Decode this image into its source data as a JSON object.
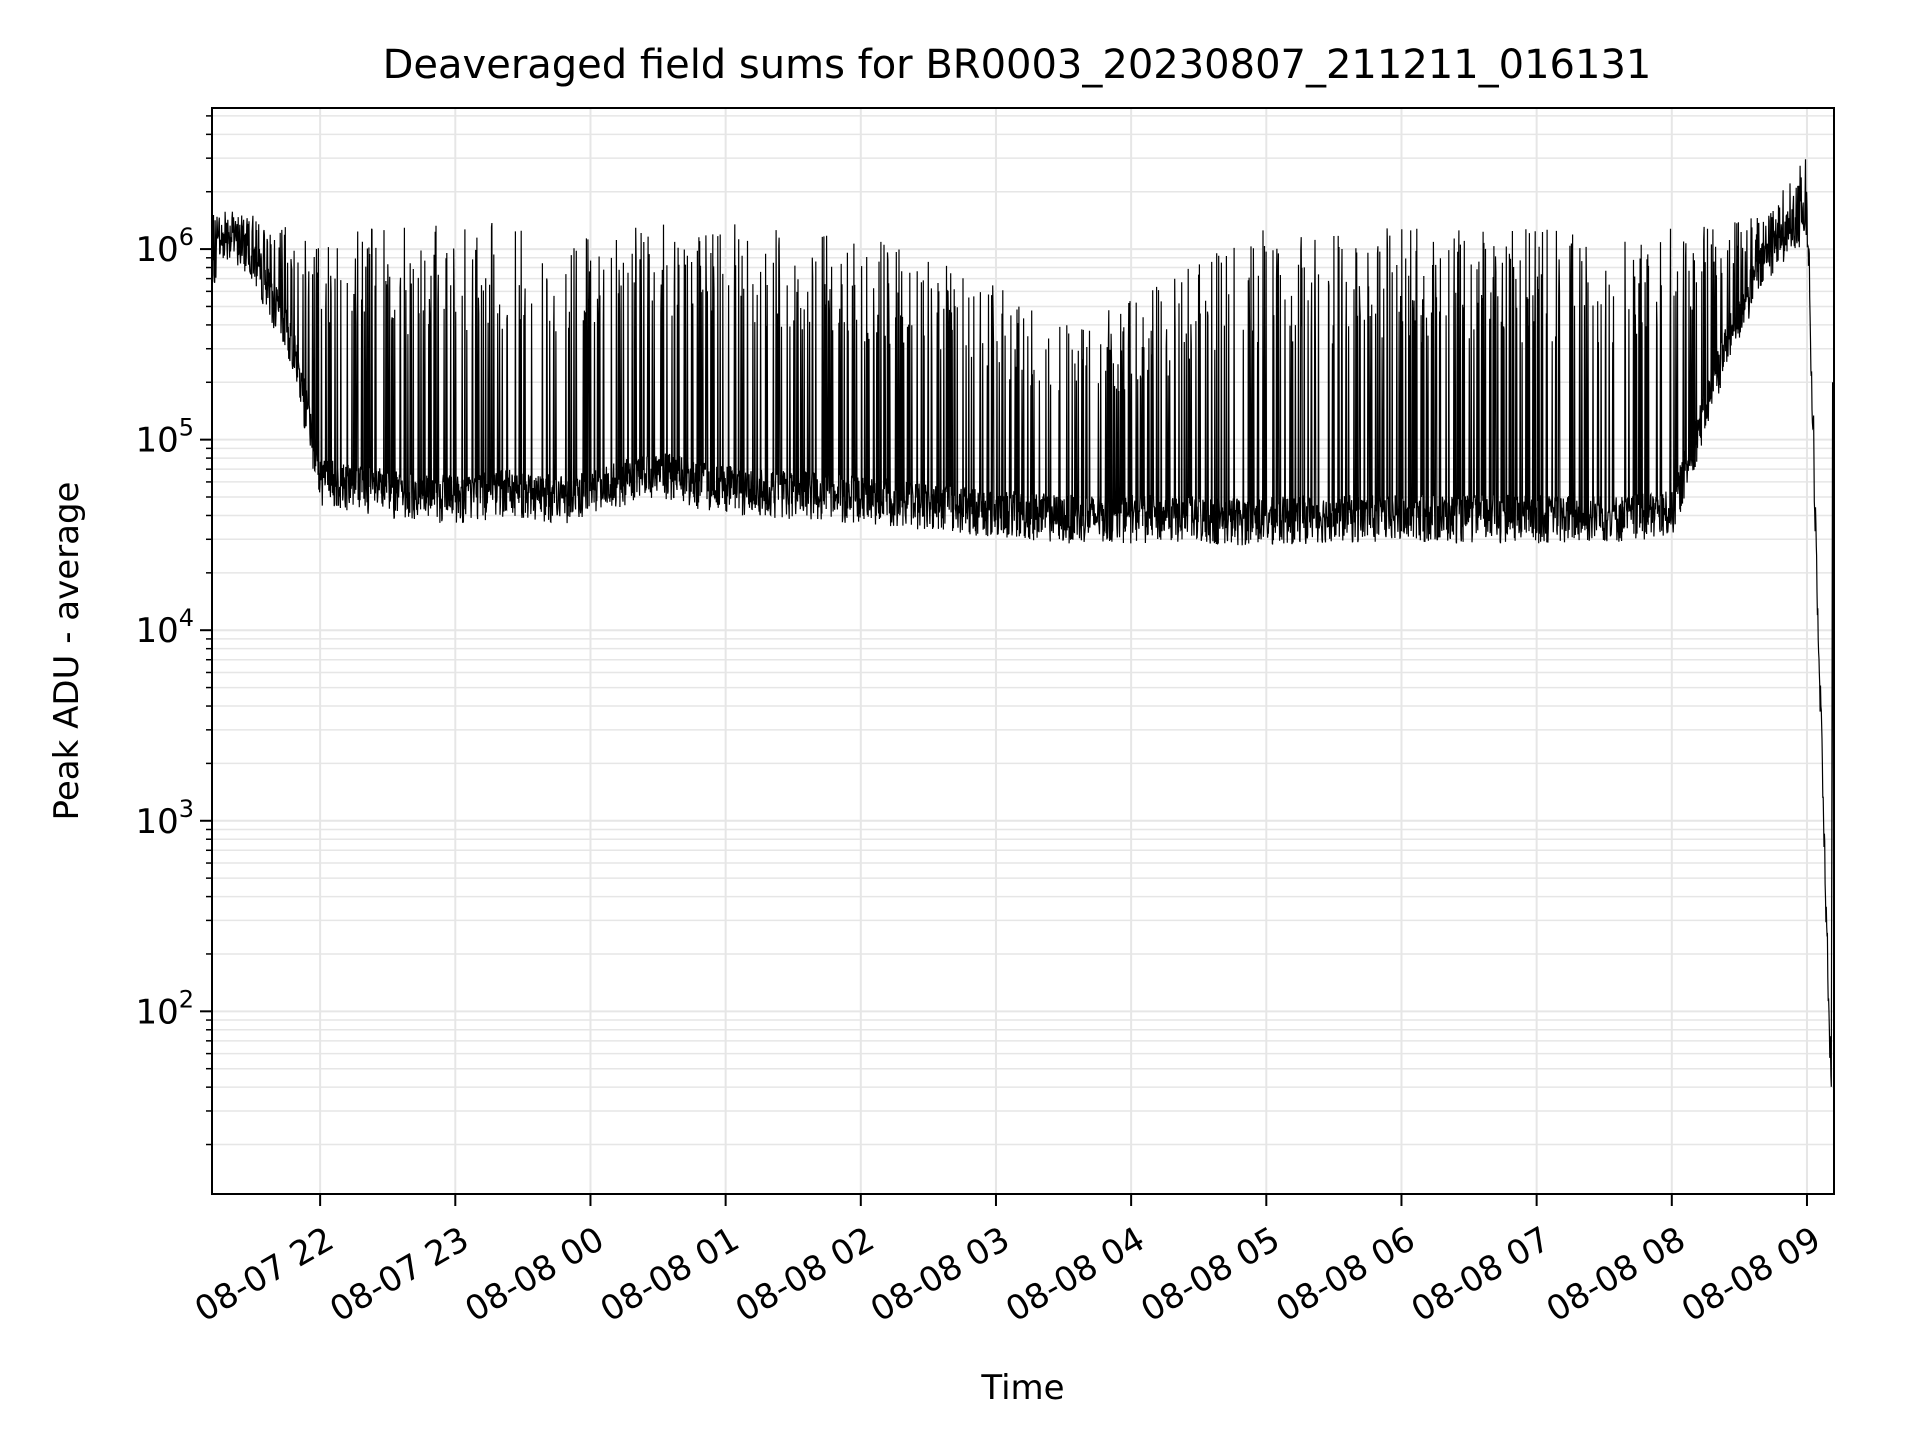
{
  "chart_data": {
    "type": "line",
    "title": "Deaveraged field sums for BR0003_20230807_211211_016131",
    "xlabel": "Time",
    "ylabel": "Peak ADU - average",
    "yscale": "log",
    "ylim": [
      11,
      5500000
    ],
    "x_range_hours": [
      "08-07 21:12",
      "08-08 09:12"
    ],
    "grid": true,
    "line_color": "#000000",
    "grid_color": "#e6e6e6",
    "x_ticks": [
      "08-07 22",
      "08-07 23",
      "08-08 00",
      "08-08 01",
      "08-08 02",
      "08-08 03",
      "08-08 04",
      "08-08 05",
      "08-08 06",
      "08-08 07",
      "08-08 08",
      "08-08 09"
    ],
    "y_ticks": [
      {
        "base": "10",
        "exp": "2",
        "value": 100
      },
      {
        "base": "10",
        "exp": "3",
        "value": 1000
      },
      {
        "base": "10",
        "exp": "4",
        "value": 10000
      },
      {
        "base": "10",
        "exp": "5",
        "value": 100000
      },
      {
        "base": "10",
        "exp": "6",
        "value": 1000000
      }
    ],
    "series": [
      {
        "x_hours_since_2100_0807": [
          0.2,
          0.3,
          0.5,
          0.8,
          1.0,
          1.3,
          1.6,
          2.0,
          2.4,
          2.8,
          3.1,
          3.5,
          3.9,
          4.3,
          4.7,
          5.0,
          5.4,
          5.8,
          6.1,
          6.5,
          6.9,
          7.3,
          7.7,
          8.0,
          8.4,
          8.8,
          9.2,
          9.6,
          9.9,
          10.3,
          10.7,
          11.0,
          11.4,
          11.7,
          12.0,
          12.2
        ],
        "baseline_y": [
          800000,
          1200000,
          900000,
          300000,
          60000,
          55000,
          50000,
          48000,
          52000,
          48000,
          55000,
          65000,
          55000,
          52000,
          50000,
          48000,
          45000,
          42000,
          40000,
          38000,
          38000,
          38000,
          37000,
          37000,
          38000,
          38000,
          38000,
          38000,
          38000,
          38000,
          38000,
          40000,
          300000,
          900000,
          1500000,
          11
        ],
        "peak_y": [
          1500000,
          1600000,
          1500000,
          1400000,
          1400000,
          1350000,
          1300000,
          1350000,
          1400000,
          1350000,
          1350000,
          1350000,
          1400000,
          1300000,
          1300000,
          1200000,
          1000000,
          800000,
          600000,
          400000,
          500000,
          700000,
          1200000,
          1300000,
          1300000,
          1300000,
          1300000,
          1300000,
          1300000,
          1300000,
          1300000,
          1300000,
          1400000,
          1500000,
          3200000,
          11
        ]
      }
    ]
  }
}
